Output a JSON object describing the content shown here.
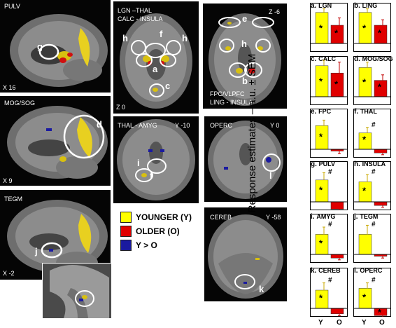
{
  "colors": {
    "younger": "#ffff00",
    "older": "#e00000",
    "y_gt_o": "#1a1aa0",
    "circle": "#ffffff"
  },
  "panels": {
    "pulv": {
      "title": "PULV",
      "coord": "X 16",
      "marker": "g"
    },
    "mog": {
      "title": "MOG/SOG",
      "coord": "X 9",
      "marker": "d"
    },
    "tegm": {
      "title": "TEGM",
      "coord": "X -2",
      "marker": "j"
    },
    "lgn": {
      "title_line1": "LGN –THAL",
      "title_line2": "CALC - INSULA",
      "coord": "Z 0",
      "markers": [
        "h",
        "f",
        "h",
        "a",
        "c"
      ]
    },
    "fpc": {
      "coord": "Z -6",
      "caption_line1": "FPC/VLPFC",
      "caption_line2": "LING - INSULA",
      "markers": [
        "e",
        "h",
        "b"
      ]
    },
    "thal": {
      "title": "THAL - AMYG",
      "coord": "Y -10",
      "markers": [
        "i",
        "f"
      ]
    },
    "operc": {
      "title": "OPERC",
      "coord": "Y 0",
      "marker": "l"
    },
    "cereb": {
      "title": "CEREB",
      "coord": "Y -58",
      "marker": "k"
    }
  },
  "legend": {
    "younger": "YOUNGER (Y)",
    "older": "OLDER (O)",
    "y_gt_o": "Y > O"
  },
  "chart_data": {
    "type": "bar",
    "ylabel": "Response estimates – a.u. ± SEM",
    "categories": [
      "Y",
      "O"
    ],
    "panels": [
      {
        "letter": "a.",
        "name": "LGN",
        "values": [
          0.85,
          0.5
        ],
        "errors": [
          0.1,
          0.2
        ],
        "stars": [
          "*",
          "*"
        ],
        "hash": ""
      },
      {
        "letter": "b.",
        "name": "LING",
        "values": [
          0.85,
          0.5
        ],
        "errors": [
          0.1,
          0.15
        ],
        "stars": [
          "*",
          "*"
        ],
        "hash": ""
      },
      {
        "letter": "c.",
        "name": "CALC",
        "values": [
          0.85,
          0.65
        ],
        "errors": [
          0.15,
          0.3
        ],
        "stars": [
          "*",
          "*"
        ],
        "hash": ""
      },
      {
        "letter": "d.",
        "name": "MOG/SOG",
        "values": [
          0.8,
          0.45
        ],
        "errors": [
          0.15,
          0.15
        ],
        "stars": [
          "*",
          "*"
        ],
        "hash": ""
      },
      {
        "letter": "e.",
        "name": "FPC",
        "values": [
          0.65,
          -0.05
        ],
        "errors": [
          0.15,
          0.07
        ],
        "stars": [
          "*",
          ""
        ],
        "hash": ""
      },
      {
        "letter": "f.",
        "name": "THAL",
        "values": [
          0.45,
          -0.1
        ],
        "errors": [
          0.15,
          0.05
        ],
        "stars": [
          "*",
          ""
        ],
        "hash": "#"
      },
      {
        "letter": "g.",
        "name": "PULV",
        "values": [
          0.6,
          -0.2
        ],
        "errors": [
          0.2,
          0.05
        ],
        "stars": [
          "*",
          ""
        ],
        "hash": "#"
      },
      {
        "letter": "h.",
        "name": "INSULA",
        "values": [
          0.55,
          -0.1
        ],
        "errors": [
          0.2,
          0.05
        ],
        "stars": [
          "*",
          ""
        ],
        "hash": "#"
      },
      {
        "letter": "i.",
        "name": "AMYG",
        "values": [
          0.55,
          -0.1
        ],
        "errors": [
          0.2,
          0.05
        ],
        "stars": [
          "*",
          ""
        ],
        "hash": "#"
      },
      {
        "letter": "j.",
        "name": "TEGM",
        "values": [
          0.55,
          -0.05
        ],
        "errors": [
          0.25,
          0.05
        ],
        "stars": [
          "",
          ""
        ],
        "hash": "#"
      },
      {
        "letter": "k.",
        "name": "CEREB",
        "values": [
          0.5,
          -0.15
        ],
        "errors": [
          0.2,
          0.05
        ],
        "stars": [
          "*",
          ""
        ],
        "hash": "#"
      },
      {
        "letter": "l.",
        "name": "OPERC",
        "values": [
          0.55,
          -0.2
        ],
        "errors": [
          0.15,
          0.05
        ],
        "stars": [
          "*",
          "*"
        ],
        "hash": "#"
      }
    ]
  }
}
